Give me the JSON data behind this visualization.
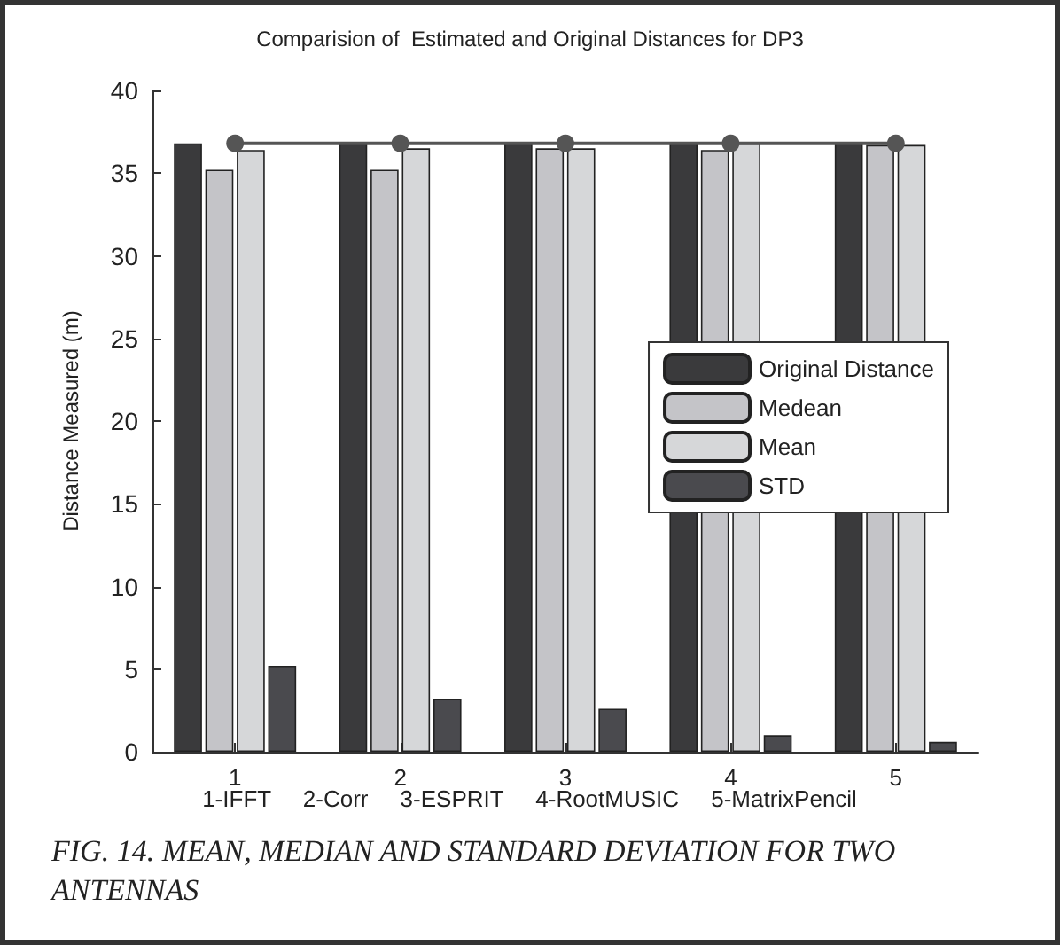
{
  "chart_data": {
    "type": "bar",
    "title": "Comparision of  Estimated and Original Distances for DP3",
    "ylabel": "Distance Measured (m)",
    "categories": [
      "1",
      "2",
      "3",
      "4",
      "5"
    ],
    "series": [
      {
        "name": "Original Distance",
        "color": "#3a3a3c",
        "values": [
          36.8,
          36.8,
          36.8,
          36.8,
          36.8
        ]
      },
      {
        "name": "Medean",
        "color": "#c4c4c8",
        "values": [
          35.2,
          35.2,
          36.5,
          36.4,
          36.7
        ]
      },
      {
        "name": "Mean",
        "color": "#d6d7d9",
        "values": [
          36.4,
          36.5,
          36.5,
          36.8,
          36.7
        ]
      },
      {
        "name": "STD",
        "color": "#4a4a4e",
        "values": [
          5.2,
          3.2,
          2.6,
          1.0,
          0.6
        ]
      },
      {
        "type": "line",
        "color": "#555555",
        "marker": "circle",
        "values": [
          36.8,
          36.8,
          36.8,
          36.8,
          36.8
        ]
      }
    ],
    "ylim": [
      0,
      40
    ],
    "yticks": [
      0,
      5,
      10,
      15,
      20,
      25,
      30,
      35,
      40
    ],
    "grid": false,
    "legend": "right",
    "annotations": [
      "1-IFFT     2-Corr     3-ESPRIT     4-RootMUSIC     5-MatrixPencil",
      "FIG. 14. MEAN, MEDIAN AND STANDARD DEVIATION FOR TWO ANTENNAS"
    ]
  }
}
